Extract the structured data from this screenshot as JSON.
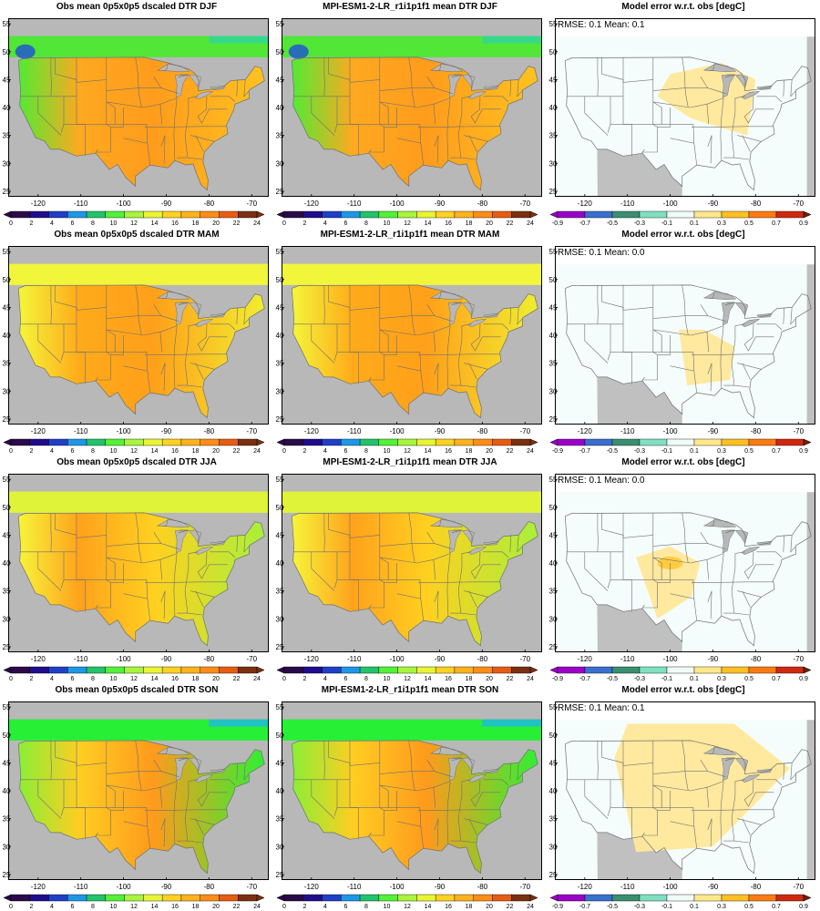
{
  "figure": {
    "rows": [
      {
        "season": "DJF",
        "obs_title": "Obs mean 0p5x0p5 dscaled DTR DJF",
        "model_title": "MPI-ESM1-2-LR_r1i1p1f1 mean DTR DJF",
        "error_title": "Model error w.r.t. obs [degC]",
        "error_stats": "RMSE: 0.1   Mean: 0.1"
      },
      {
        "season": "MAM",
        "obs_title": "Obs mean 0p5x0p5 dscaled DTR MAM",
        "model_title": "MPI-ESM1-2-LR_r1i1p1f1 mean DTR MAM",
        "error_title": "Model error w.r.t. obs [degC]",
        "error_stats": "RMSE: 0.1   Mean: 0.0"
      },
      {
        "season": "JJA",
        "obs_title": "Obs mean 0p5x0p5 dscaled DTR JJA",
        "model_title": "MPI-ESM1-2-LR_r1i1p1f1 mean DTR JJA",
        "error_title": "Model error w.r.t. obs [degC]",
        "error_stats": "RMSE: 0.1   Mean: 0.0"
      },
      {
        "season": "SON",
        "obs_title": "Obs mean 0p5x0p5 dscaled DTR SON",
        "model_title": "MPI-ESM1-2-LR_r1i1p1f1 mean DTR SON",
        "error_title": "Model error w.r.t. obs [degC]",
        "error_stats": "RMSE: 0.1   Mean: 0.1"
      }
    ],
    "lon_ticks": [
      "-120",
      "-110",
      "-100",
      "-90",
      "-80",
      "-70"
    ],
    "lat_ticks": [
      "55",
      "50",
      "45",
      "40",
      "35",
      "30",
      "25"
    ],
    "dtr_colorbar": {
      "labels": [
        "0",
        "2",
        "4",
        "6",
        "8",
        "10",
        "12",
        "14",
        "16",
        "18",
        "20",
        "22",
        "24"
      ],
      "colors": [
        "#2a0a48",
        "#1e0d8c",
        "#1f3fc8",
        "#1d97e6",
        "#20c46a",
        "#52f236",
        "#a8f53a",
        "#e8f532",
        "#ffd21f",
        "#ffb31a",
        "#ff8c14",
        "#e85c10",
        "#7a3010"
      ],
      "under_color": "#2a0a48",
      "over_color": "#7a3010"
    },
    "error_colorbar": {
      "labels": [
        "-0.9",
        "-0.7",
        "-0.5",
        "-0.3",
        "-0.1",
        "0.1",
        "0.3",
        "0.5",
        "0.7",
        "0.9"
      ],
      "colors": [
        "#9a00c8",
        "#3a6fd0",
        "#3a8f70",
        "#7fe0bf",
        "#f0fcf8",
        "#ffe88a",
        "#ffc020",
        "#ff7a10",
        "#d02810"
      ],
      "under_color": "#9a00c8",
      "over_color": "#6a2010"
    },
    "colors": {
      "missing": "#b8b8b8",
      "ocean_in_frame": "#c0c0c0",
      "border_lines": "#707070",
      "error_background": "#f4fdfb"
    }
  }
}
